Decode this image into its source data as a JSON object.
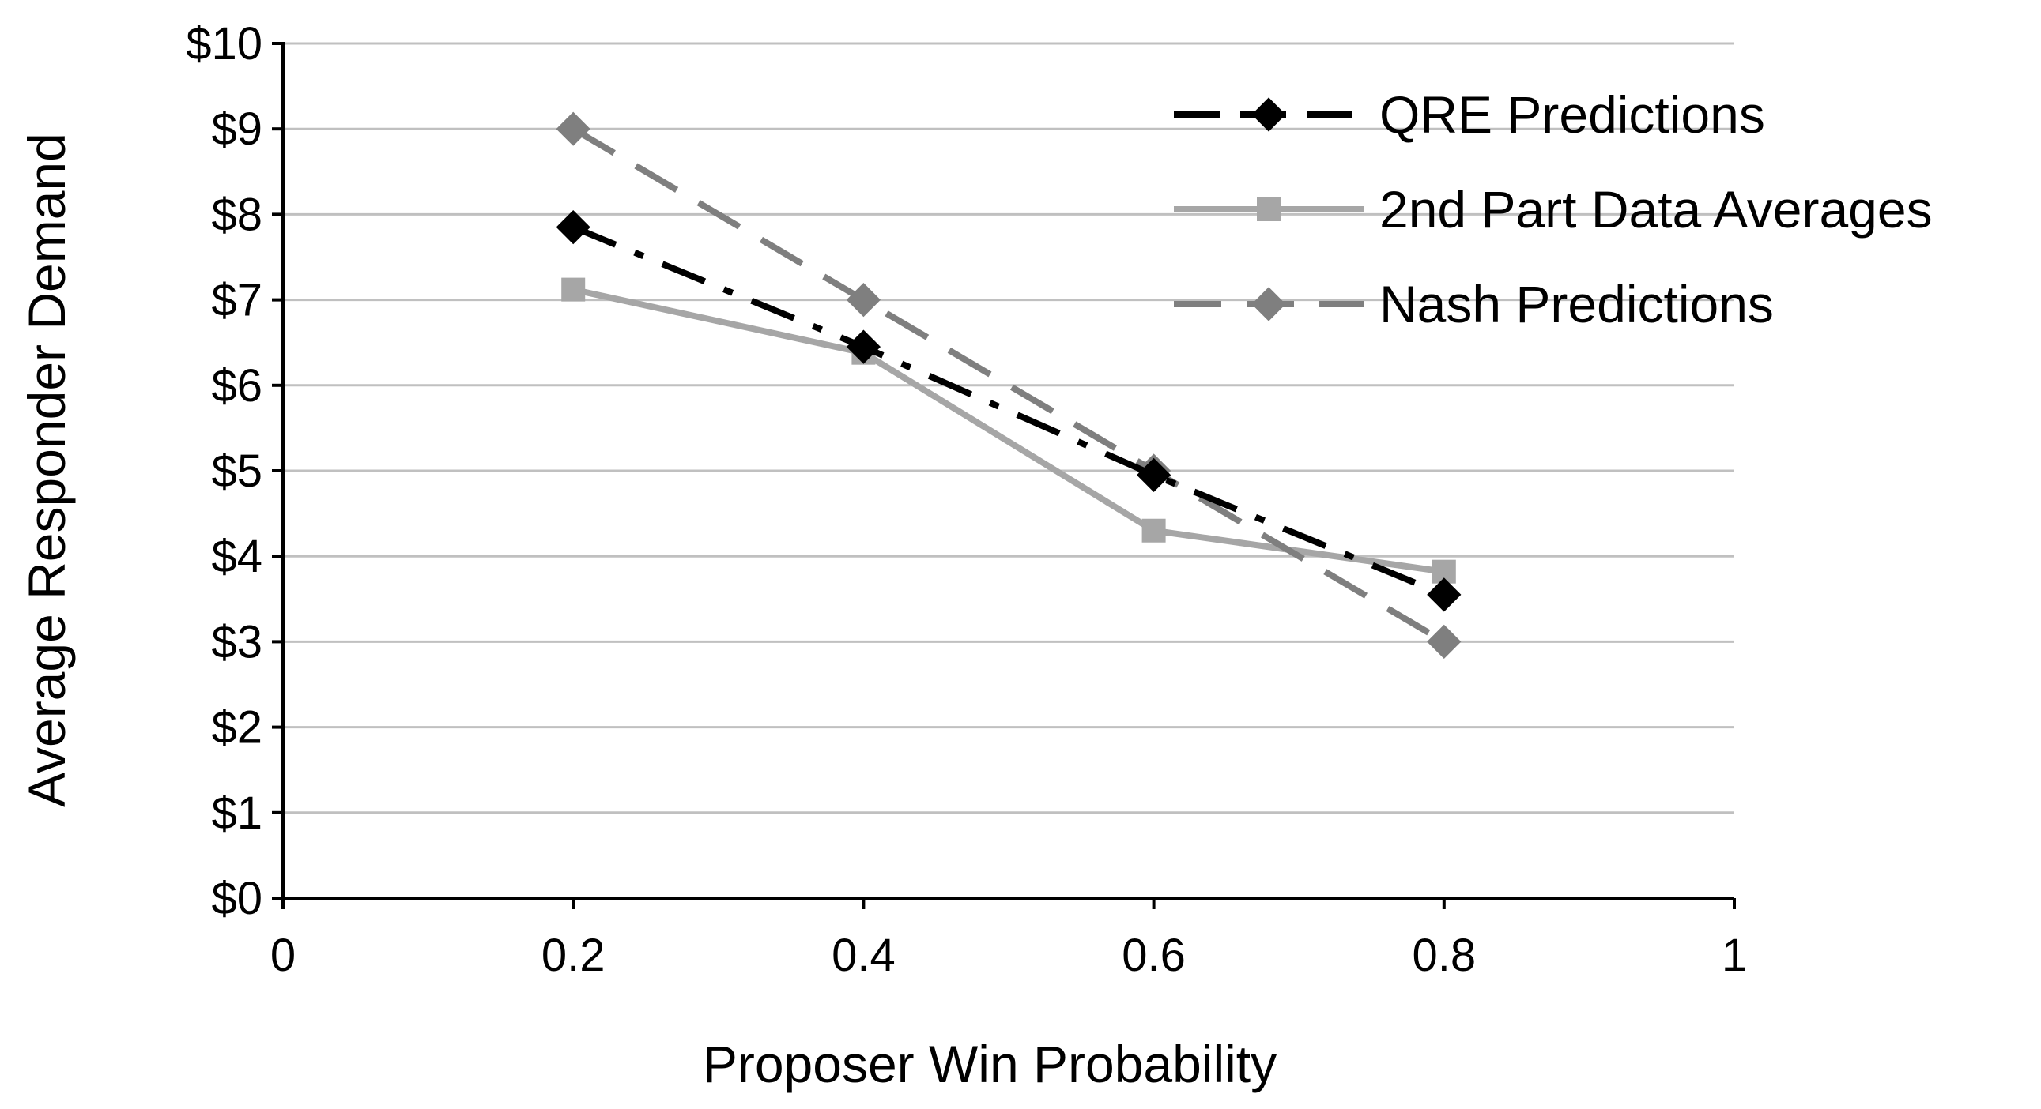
{
  "chart_data": {
    "type": "line",
    "title": "",
    "xlabel": "Proposer Win Probability",
    "ylabel": "Average Responder Demand",
    "xlim": [
      0,
      1
    ],
    "ylim": [
      0,
      10
    ],
    "x_ticks": [
      0,
      0.2,
      0.4,
      0.6,
      0.8,
      1
    ],
    "x_tick_labels": [
      "0",
      "0.2",
      "0.4",
      "0.6",
      "0.8",
      "1"
    ],
    "y_ticks": [
      0,
      1,
      2,
      3,
      4,
      5,
      6,
      7,
      8,
      9,
      10
    ],
    "y_tick_labels": [
      "$0",
      "$1",
      "$2",
      "$3",
      "$4",
      "$5",
      "$6",
      "$7",
      "$8",
      "$9",
      "$10"
    ],
    "grid": "horizontal",
    "legend_position": "top-right",
    "series": [
      {
        "name": "QRE Predictions",
        "x": [
          0.2,
          0.4,
          0.6,
          0.8
        ],
        "values": [
          7.85,
          6.45,
          4.95,
          3.55
        ],
        "color": "#000000",
        "line_style": "dash-dot",
        "marker": "diamond"
      },
      {
        "name": "2nd Part Data Averages",
        "x": [
          0.2,
          0.4,
          0.6,
          0.8
        ],
        "values": [
          7.12,
          6.38,
          4.3,
          3.82
        ],
        "color": "#a6a6a6",
        "line_style": "solid",
        "marker": "square"
      },
      {
        "name": "Nash Predictions",
        "x": [
          0.2,
          0.4,
          0.6,
          0.8
        ],
        "values": [
          9,
          7,
          5,
          3
        ],
        "color": "#7f7f7f",
        "line_style": "dashed",
        "marker": "diamond"
      }
    ]
  }
}
